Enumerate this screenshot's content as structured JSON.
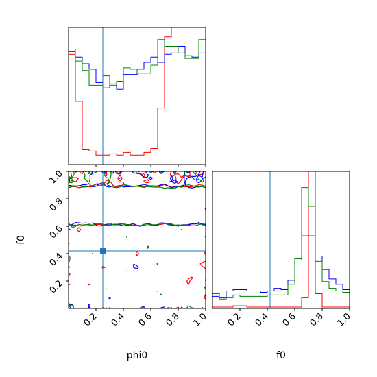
{
  "chart_data": {
    "type": "corner",
    "parameters": [
      "phi0",
      "f0"
    ],
    "xlabel_left": "phi0",
    "xlabel_right": "f0",
    "ylabel": "f0",
    "phi0_range": [
      0,
      1
    ],
    "f0_range": [
      0,
      1
    ],
    "truth": {
      "phi0": 0.25,
      "f0": 0.42
    },
    "x_ticks": [
      "0.2",
      "0.4",
      "0.6",
      "0.8",
      "1.0"
    ],
    "y_ticks": [
      "0.2",
      "0.4",
      "0.6",
      "0.8",
      "1.0"
    ],
    "colors": {
      "series_a": "#ff0000",
      "series_b": "#0000ff",
      "series_c": "#008000",
      "truth": "#1f77b4"
    },
    "phi0_hist": {
      "bins": [
        0.0,
        0.05,
        0.1,
        0.15,
        0.2,
        0.25,
        0.3,
        0.35,
        0.4,
        0.45,
        0.5,
        0.55,
        0.6,
        0.65,
        0.7,
        0.75,
        0.8,
        0.85,
        0.9,
        0.95,
        1.0
      ],
      "series": [
        {
          "color": "red",
          "values": [
            0.82,
            0.47,
            0.11,
            0.1,
            0.07,
            0.07,
            0.08,
            0.07,
            0.09,
            0.07,
            0.07,
            0.09,
            0.12,
            0.42,
            0.95,
            1.0,
            1.0,
            1.0,
            1.0,
            1.0
          ]
        },
        {
          "color": "blue",
          "values": [
            0.84,
            0.8,
            0.75,
            0.71,
            0.61,
            0.57,
            0.6,
            0.56,
            0.67,
            0.67,
            0.71,
            0.76,
            0.8,
            0.76,
            0.82,
            0.83,
            0.88,
            0.81,
            0.8,
            0.83
          ]
        },
        {
          "color": "green",
          "values": [
            0.86,
            0.77,
            0.7,
            0.59,
            0.59,
            0.66,
            0.59,
            0.62,
            0.72,
            0.71,
            0.68,
            0.68,
            0.74,
            0.93,
            0.88,
            0.88,
            0.83,
            0.79,
            0.79,
            0.93
          ]
        }
      ]
    },
    "f0_hist": {
      "bins": [
        0.0,
        0.05,
        0.1,
        0.15,
        0.2,
        0.25,
        0.3,
        0.35,
        0.4,
        0.45,
        0.5,
        0.55,
        0.6,
        0.65,
        0.7,
        0.75,
        0.8,
        0.85,
        0.9,
        0.95,
        1.0
      ],
      "series": [
        {
          "color": "red",
          "values": [
            0.01,
            0.01,
            0.01,
            0.02,
            0.02,
            0.01,
            0.01,
            0.01,
            0.01,
            0.01,
            0.01,
            0.01,
            0.01,
            0.08,
            1.0,
            0.11,
            0.01,
            0.01,
            0.01,
            0.01
          ]
        },
        {
          "color": "blue",
          "values": [
            0.09,
            0.08,
            0.13,
            0.14,
            0.14,
            0.13,
            0.13,
            0.12,
            0.13,
            0.15,
            0.14,
            0.21,
            0.36,
            0.54,
            0.54,
            0.39,
            0.29,
            0.22,
            0.18,
            0.14
          ]
        },
        {
          "color": "green",
          "values": [
            0.11,
            0.07,
            0.08,
            0.1,
            0.09,
            0.09,
            0.09,
            0.09,
            0.1,
            0.1,
            0.1,
            0.18,
            0.37,
            0.9,
            0.76,
            0.35,
            0.2,
            0.15,
            0.13,
            0.12
          ]
        }
      ]
    },
    "contours_2d": [
      {
        "color": "red",
        "level_bands_f0": [
          [
            0.62,
            0.9
          ]
        ],
        "style": "blotchy"
      },
      {
        "color": "blue",
        "level_bands_f0": [
          [
            0.6,
            0.9
          ]
        ],
        "style": "blotchy"
      },
      {
        "color": "green",
        "level_bands_f0": [
          [
            0.6,
            0.9
          ]
        ],
        "style": "blotchy"
      }
    ]
  }
}
